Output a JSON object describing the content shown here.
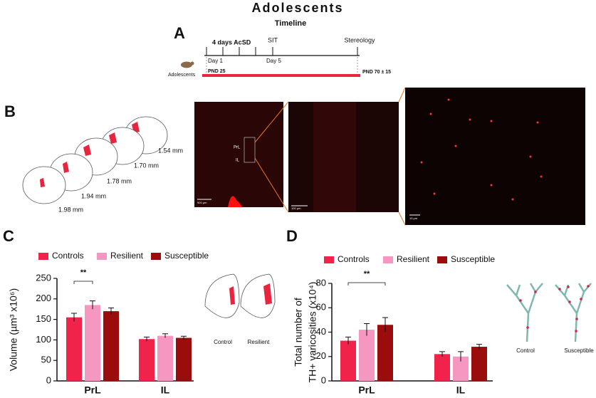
{
  "title": "Adolescents",
  "panels": [
    "A",
    "B",
    "C",
    "D"
  ],
  "timeline": {
    "title": "Timeline",
    "events": [
      "4 days AcSD",
      "SIT",
      "Stereology"
    ],
    "days": [
      "Day 1",
      "Day 5"
    ],
    "group": "Adolescents",
    "start": "PND 25",
    "end": "PND 70 ± 15"
  },
  "sections": {
    "levels": [
      "1.54 mm",
      "1.70 mm",
      "1.78 mm",
      "1.94 mm",
      "1.98 mm"
    ],
    "regions": [
      "PrL",
      "IL"
    ],
    "scale_bars": [
      "500 µm",
      "100 µm",
      "10 µm"
    ]
  },
  "chart_data": [
    {
      "type": "bar",
      "y_label": "Volume (µm³ x10⁶)",
      "categories": [
        "PrL",
        "IL"
      ],
      "series": [
        {
          "name": "Controls",
          "color": "#f0244a",
          "values": [
            155,
            102
          ],
          "errors": [
            10,
            5
          ]
        },
        {
          "name": "Resilient",
          "color": "#f597c0",
          "values": [
            185,
            110
          ],
          "errors": [
            10,
            5
          ]
        },
        {
          "name": "Susceptible",
          "color": "#9b0d0d",
          "values": [
            170,
            105
          ],
          "errors": [
            8,
            4
          ]
        }
      ],
      "ylim": [
        0,
        250
      ],
      "yticks": [
        0,
        50,
        100,
        150,
        200,
        250
      ],
      "annotation": "**",
      "schematic_labels": [
        "Control",
        "Resilient"
      ]
    },
    {
      "type": "bar",
      "y_label": [
        "Total number of",
        "TH+ varicosities (x10⁴)"
      ],
      "categories": [
        "PrL",
        "IL"
      ],
      "series": [
        {
          "name": "Controls",
          "color": "#f0244a",
          "values": [
            33,
            22
          ],
          "errors": [
            3,
            2
          ]
        },
        {
          "name": "Resilient",
          "color": "#f597c0",
          "values": [
            42,
            20
          ],
          "errors": [
            5,
            4
          ]
        },
        {
          "name": "Susceptible",
          "color": "#9b0d0d",
          "values": [
            46,
            28
          ],
          "errors": [
            6,
            2
          ]
        }
      ],
      "ylim": [
        0,
        80
      ],
      "yticks": [
        0,
        20,
        40,
        60,
        80
      ],
      "annotation": "**",
      "schematic_labels": [
        "Control",
        "Susceptible"
      ]
    }
  ]
}
